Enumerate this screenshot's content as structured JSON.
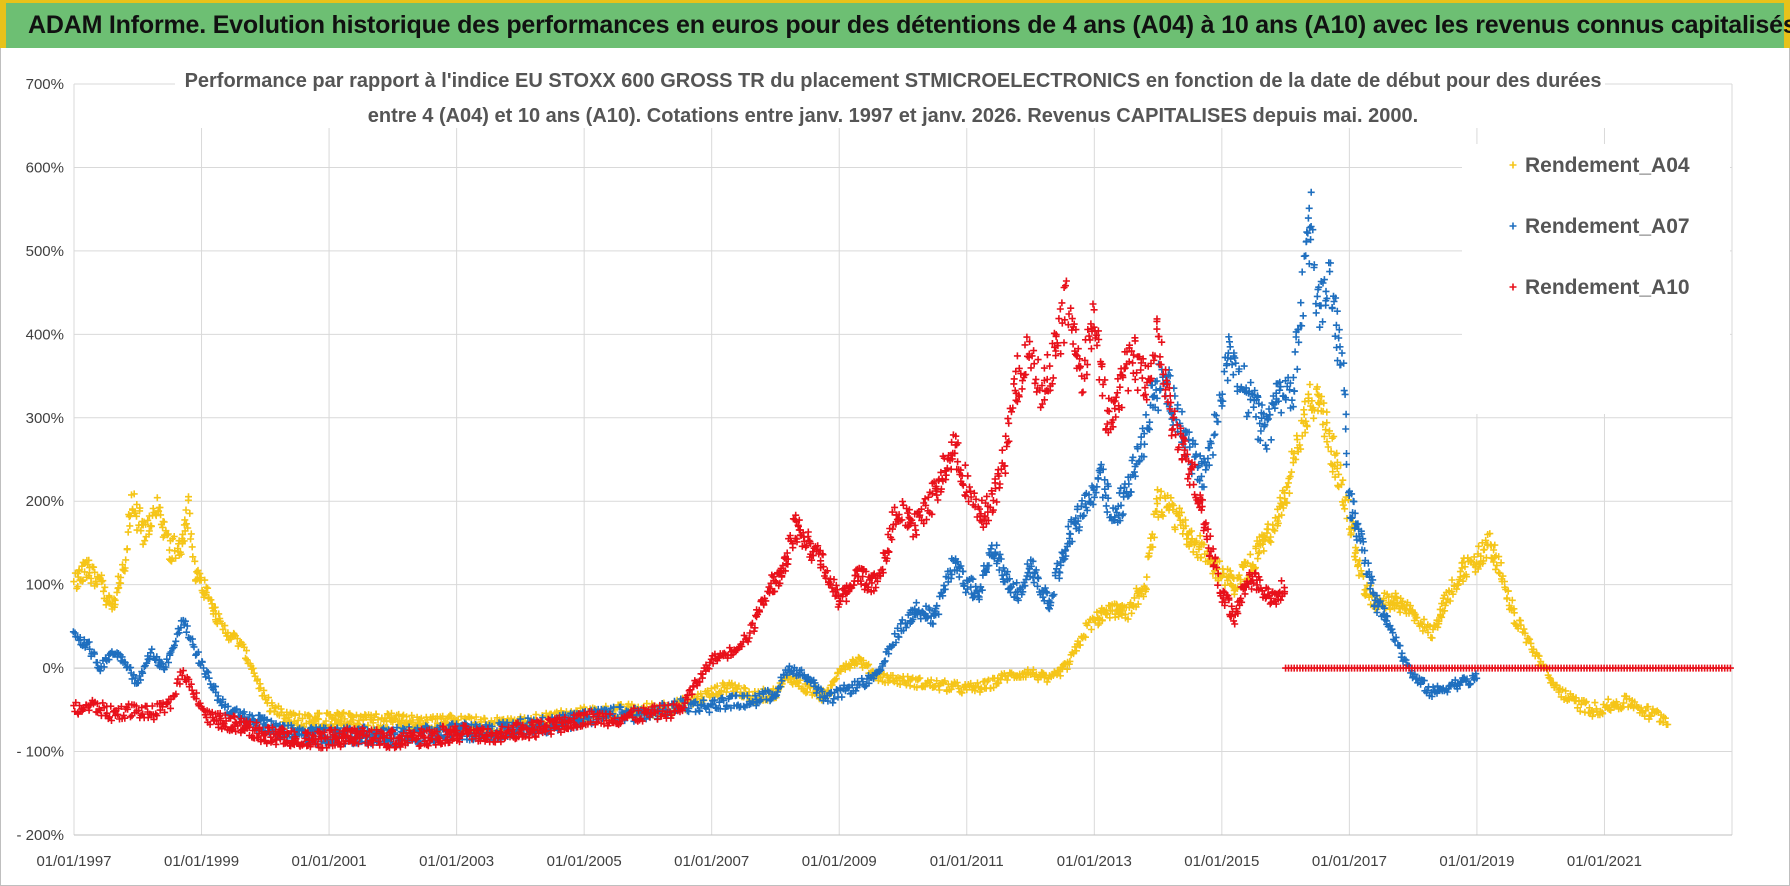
{
  "banner": {
    "text": "ADAM Informe. Evolution historique des performances en euros pour des détentions de 4 ans (A04) à 10 ans (A10) avec les revenus connus capitalisés"
  },
  "colors": {
    "A04": "#f5c518",
    "A07": "#1f6fbf",
    "A10": "#e8101a",
    "banner_bg": "#6dbf73",
    "banner_border": "#e8c21a",
    "grid": "#d9d9d9"
  },
  "chart_data": {
    "type": "scatter",
    "title_lines": [
      "Performance par rapport à l'indice EU STOXX 600 GROSS TR  du placement STMICROELECTRONICS en fonction de la date de début pour des durées",
      "entre 4 (A04) et 10 ans (A10).  Cotations entre janv. 1997 et janv. 2026. Revenus CAPITALISES depuis mai. 2000."
    ],
    "x_range": [
      1997.0,
      2023.0
    ],
    "y_range": [
      -200,
      700
    ],
    "y_ticks": [
      700,
      600,
      500,
      400,
      300,
      200,
      100,
      0,
      -100,
      -200
    ],
    "y_tick_labels": [
      "700%",
      "600%",
      "500%",
      "400%",
      "300%",
      "200%",
      "100%",
      "0%",
      "- 100%",
      "- 200%"
    ],
    "x_ticks": [
      1997,
      1999,
      2001,
      2003,
      2005,
      2007,
      2009,
      2011,
      2013,
      2015,
      2017,
      2019,
      2021
    ],
    "x_tick_labels": [
      "01/01/1997",
      "01/01/1999",
      "01/01/2001",
      "01/01/2003",
      "01/01/2005",
      "01/01/2007",
      "01/01/2009",
      "01/01/2011",
      "01/01/2013",
      "01/01/2015",
      "01/01/2017",
      "01/01/2019",
      "01/01/2021"
    ],
    "legend": [
      "Rendement_A04",
      "Rendement_A07",
      "Rendement_A10"
    ],
    "series": [
      {
        "name": "Rendement_A04",
        "color": "#f5c518",
        "points": [
          [
            1997.0,
            100
          ],
          [
            1997.2,
            120
          ],
          [
            1997.4,
            105
          ],
          [
            1997.6,
            70
          ],
          [
            1997.8,
            130
          ],
          [
            1997.9,
            200
          ],
          [
            1998.1,
            160
          ],
          [
            1998.3,
            190
          ],
          [
            1998.5,
            140
          ],
          [
            1998.7,
            150
          ],
          [
            1998.8,
            190
          ],
          [
            1998.9,
            110
          ],
          [
            1999.1,
            90
          ],
          [
            1999.3,
            50
          ],
          [
            1999.6,
            30
          ],
          [
            1999.8,
            0
          ],
          [
            2000.0,
            -40
          ],
          [
            2000.3,
            -60
          ],
          [
            2000.6,
            -65
          ],
          [
            2001.0,
            -60
          ],
          [
            2001.5,
            -65
          ],
          [
            2002.0,
            -62
          ],
          [
            2002.5,
            -68
          ],
          [
            2003.0,
            -65
          ],
          [
            2003.5,
            -70
          ],
          [
            2004.0,
            -68
          ],
          [
            2004.5,
            -62
          ],
          [
            2005.0,
            -55
          ],
          [
            2005.5,
            -52
          ],
          [
            2006.0,
            -50
          ],
          [
            2006.5,
            -45
          ],
          [
            2007.0,
            -30
          ],
          [
            2007.3,
            -20
          ],
          [
            2007.6,
            -35
          ],
          [
            2008.0,
            -30
          ],
          [
            2008.2,
            -10
          ],
          [
            2008.5,
            -25
          ],
          [
            2008.8,
            -35
          ],
          [
            2009.0,
            0
          ],
          [
            2009.3,
            10
          ],
          [
            2009.6,
            -10
          ],
          [
            2010.0,
            -15
          ],
          [
            2010.5,
            -20
          ],
          [
            2011.0,
            -25
          ],
          [
            2011.3,
            -22
          ],
          [
            2011.6,
            -10
          ],
          [
            2012.0,
            -5
          ],
          [
            2012.3,
            -15
          ],
          [
            2012.6,
            5
          ],
          [
            2012.9,
            50
          ],
          [
            2013.2,
            70
          ],
          [
            2013.5,
            65
          ],
          [
            2013.8,
            100
          ],
          [
            2014.0,
            200
          ],
          [
            2014.3,
            180
          ],
          [
            2014.6,
            150
          ],
          [
            2014.9,
            120
          ],
          [
            2015.2,
            100
          ],
          [
            2015.5,
            130
          ],
          [
            2015.8,
            170
          ],
          [
            2016.0,
            210
          ],
          [
            2016.2,
            270
          ],
          [
            2016.4,
            320
          ],
          [
            2016.6,
            300
          ],
          [
            2016.8,
            240
          ],
          [
            2017.0,
            180
          ],
          [
            2017.2,
            100
          ],
          [
            2017.4,
            80
          ],
          [
            2017.7,
            80
          ],
          [
            2018.0,
            65
          ],
          [
            2018.3,
            40
          ],
          [
            2018.5,
            80
          ],
          [
            2018.8,
            120
          ],
          [
            2019.0,
            130
          ],
          [
            2019.2,
            150
          ],
          [
            2019.4,
            110
          ],
          [
            2019.6,
            60
          ],
          [
            2019.9,
            20
          ],
          [
            2020.2,
            -20
          ],
          [
            2020.5,
            -40
          ],
          [
            2020.8,
            -50
          ],
          [
            2021.1,
            -45
          ],
          [
            2021.4,
            -40
          ],
          [
            2021.7,
            -55
          ],
          [
            2022.0,
            -60
          ]
        ]
      },
      {
        "name": "Rendement_A07",
        "color": "#1f6fbf",
        "points": [
          [
            1997.0,
            40
          ],
          [
            1997.2,
            30
          ],
          [
            1997.4,
            0
          ],
          [
            1997.6,
            20
          ],
          [
            1997.8,
            10
          ],
          [
            1998.0,
            -20
          ],
          [
            1998.2,
            20
          ],
          [
            1998.4,
            0
          ],
          [
            1998.6,
            30
          ],
          [
            1998.7,
            60
          ],
          [
            1998.9,
            20
          ],
          [
            1999.1,
            -10
          ],
          [
            1999.3,
            -40
          ],
          [
            1999.6,
            -60
          ],
          [
            1999.9,
            -65
          ],
          [
            2000.2,
            -75
          ],
          [
            2000.6,
            -80
          ],
          [
            2001.0,
            -82
          ],
          [
            2001.5,
            -80
          ],
          [
            2002.0,
            -82
          ],
          [
            2002.5,
            -80
          ],
          [
            2003.0,
            -75
          ],
          [
            2003.5,
            -78
          ],
          [
            2004.0,
            -70
          ],
          [
            2004.5,
            -68
          ],
          [
            2005.0,
            -60
          ],
          [
            2005.5,
            -55
          ],
          [
            2006.0,
            -55
          ],
          [
            2006.5,
            -45
          ],
          [
            2007.0,
            -45
          ],
          [
            2007.3,
            -40
          ],
          [
            2007.6,
            -40
          ],
          [
            2008.0,
            -30
          ],
          [
            2008.2,
            0
          ],
          [
            2008.5,
            -10
          ],
          [
            2008.8,
            -40
          ],
          [
            2009.0,
            -30
          ],
          [
            2009.3,
            -20
          ],
          [
            2009.6,
            -10
          ],
          [
            2009.9,
            40
          ],
          [
            2010.2,
            70
          ],
          [
            2010.5,
            60
          ],
          [
            2010.8,
            130
          ],
          [
            2011.0,
            100
          ],
          [
            2011.2,
            90
          ],
          [
            2011.4,
            150
          ],
          [
            2011.6,
            110
          ],
          [
            2011.8,
            90
          ],
          [
            2012.0,
            120
          ],
          [
            2012.3,
            80
          ],
          [
            2012.6,
            160
          ],
          [
            2012.9,
            200
          ],
          [
            2013.1,
            230
          ],
          [
            2013.3,
            180
          ],
          [
            2013.5,
            210
          ],
          [
            2013.7,
            250
          ],
          [
            2013.9,
            320
          ],
          [
            2014.1,
            350
          ],
          [
            2014.3,
            300
          ],
          [
            2014.5,
            260
          ],
          [
            2014.7,
            230
          ],
          [
            2014.9,
            290
          ],
          [
            2015.1,
            380
          ],
          [
            2015.3,
            340
          ],
          [
            2015.5,
            310
          ],
          [
            2015.7,
            280
          ],
          [
            2015.9,
            330
          ],
          [
            2016.1,
            320
          ],
          [
            2016.3,
            470
          ],
          [
            2016.4,
            550
          ],
          [
            2016.5,
            420
          ],
          [
            2016.7,
            460
          ],
          [
            2016.9,
            350
          ],
          [
            2017.0,
            200
          ],
          [
            2017.2,
            150
          ],
          [
            2017.4,
            80
          ],
          [
            2017.6,
            60
          ],
          [
            2017.8,
            20
          ],
          [
            2018.0,
            -10
          ],
          [
            2018.3,
            -30
          ],
          [
            2018.6,
            -20
          ],
          [
            2018.9,
            -15
          ],
          [
            2019.0,
            -10
          ]
        ]
      },
      {
        "name": "Rendement_A10",
        "color": "#e8101a",
        "points": [
          [
            1997.0,
            -50
          ],
          [
            1997.3,
            -45
          ],
          [
            1997.6,
            -55
          ],
          [
            1997.9,
            -50
          ],
          [
            1998.2,
            -55
          ],
          [
            1998.5,
            -45
          ],
          [
            1998.7,
            -5
          ],
          [
            1998.9,
            -30
          ],
          [
            1999.1,
            -60
          ],
          [
            1999.4,
            -65
          ],
          [
            1999.7,
            -70
          ],
          [
            2000.0,
            -80
          ],
          [
            2000.5,
            -85
          ],
          [
            2001.0,
            -85
          ],
          [
            2001.5,
            -82
          ],
          [
            2002.0,
            -85
          ],
          [
            2002.5,
            -83
          ],
          [
            2003.0,
            -78
          ],
          [
            2003.5,
            -82
          ],
          [
            2004.0,
            -75
          ],
          [
            2004.5,
            -70
          ],
          [
            2005.0,
            -60
          ],
          [
            2005.5,
            -60
          ],
          [
            2006.0,
            -55
          ],
          [
            2006.5,
            -50
          ],
          [
            2007.0,
            10
          ],
          [
            2007.3,
            20
          ],
          [
            2007.6,
            40
          ],
          [
            2007.9,
            100
          ],
          [
            2008.1,
            110
          ],
          [
            2008.3,
            170
          ],
          [
            2008.5,
            150
          ],
          [
            2008.8,
            120
          ],
          [
            2009.0,
            80
          ],
          [
            2009.3,
            110
          ],
          [
            2009.6,
            100
          ],
          [
            2009.9,
            190
          ],
          [
            2010.2,
            170
          ],
          [
            2010.5,
            210
          ],
          [
            2010.8,
            270
          ],
          [
            2011.0,
            220
          ],
          [
            2011.2,
            180
          ],
          [
            2011.4,
            200
          ],
          [
            2011.6,
            250
          ],
          [
            2011.8,
            350
          ],
          [
            2012.0,
            380
          ],
          [
            2012.2,
            330
          ],
          [
            2012.4,
            390
          ],
          [
            2012.6,
            440
          ],
          [
            2012.8,
            350
          ],
          [
            2013.0,
            420
          ],
          [
            2013.2,
            300
          ],
          [
            2013.4,
            330
          ],
          [
            2013.6,
            380
          ],
          [
            2013.8,
            340
          ],
          [
            2014.0,
            410
          ],
          [
            2014.2,
            300
          ],
          [
            2014.4,
            260
          ],
          [
            2014.6,
            220
          ],
          [
            2014.8,
            150
          ],
          [
            2015.0,
            90
          ],
          [
            2015.2,
            60
          ],
          [
            2015.4,
            110
          ],
          [
            2015.6,
            100
          ],
          [
            2015.8,
            80
          ],
          [
            2016.0,
            100
          ]
        ]
      }
    ],
    "flat_zero": {
      "series": "Rendement_A10",
      "from": 2016.0,
      "to": 2023.0,
      "value": 0
    }
  }
}
